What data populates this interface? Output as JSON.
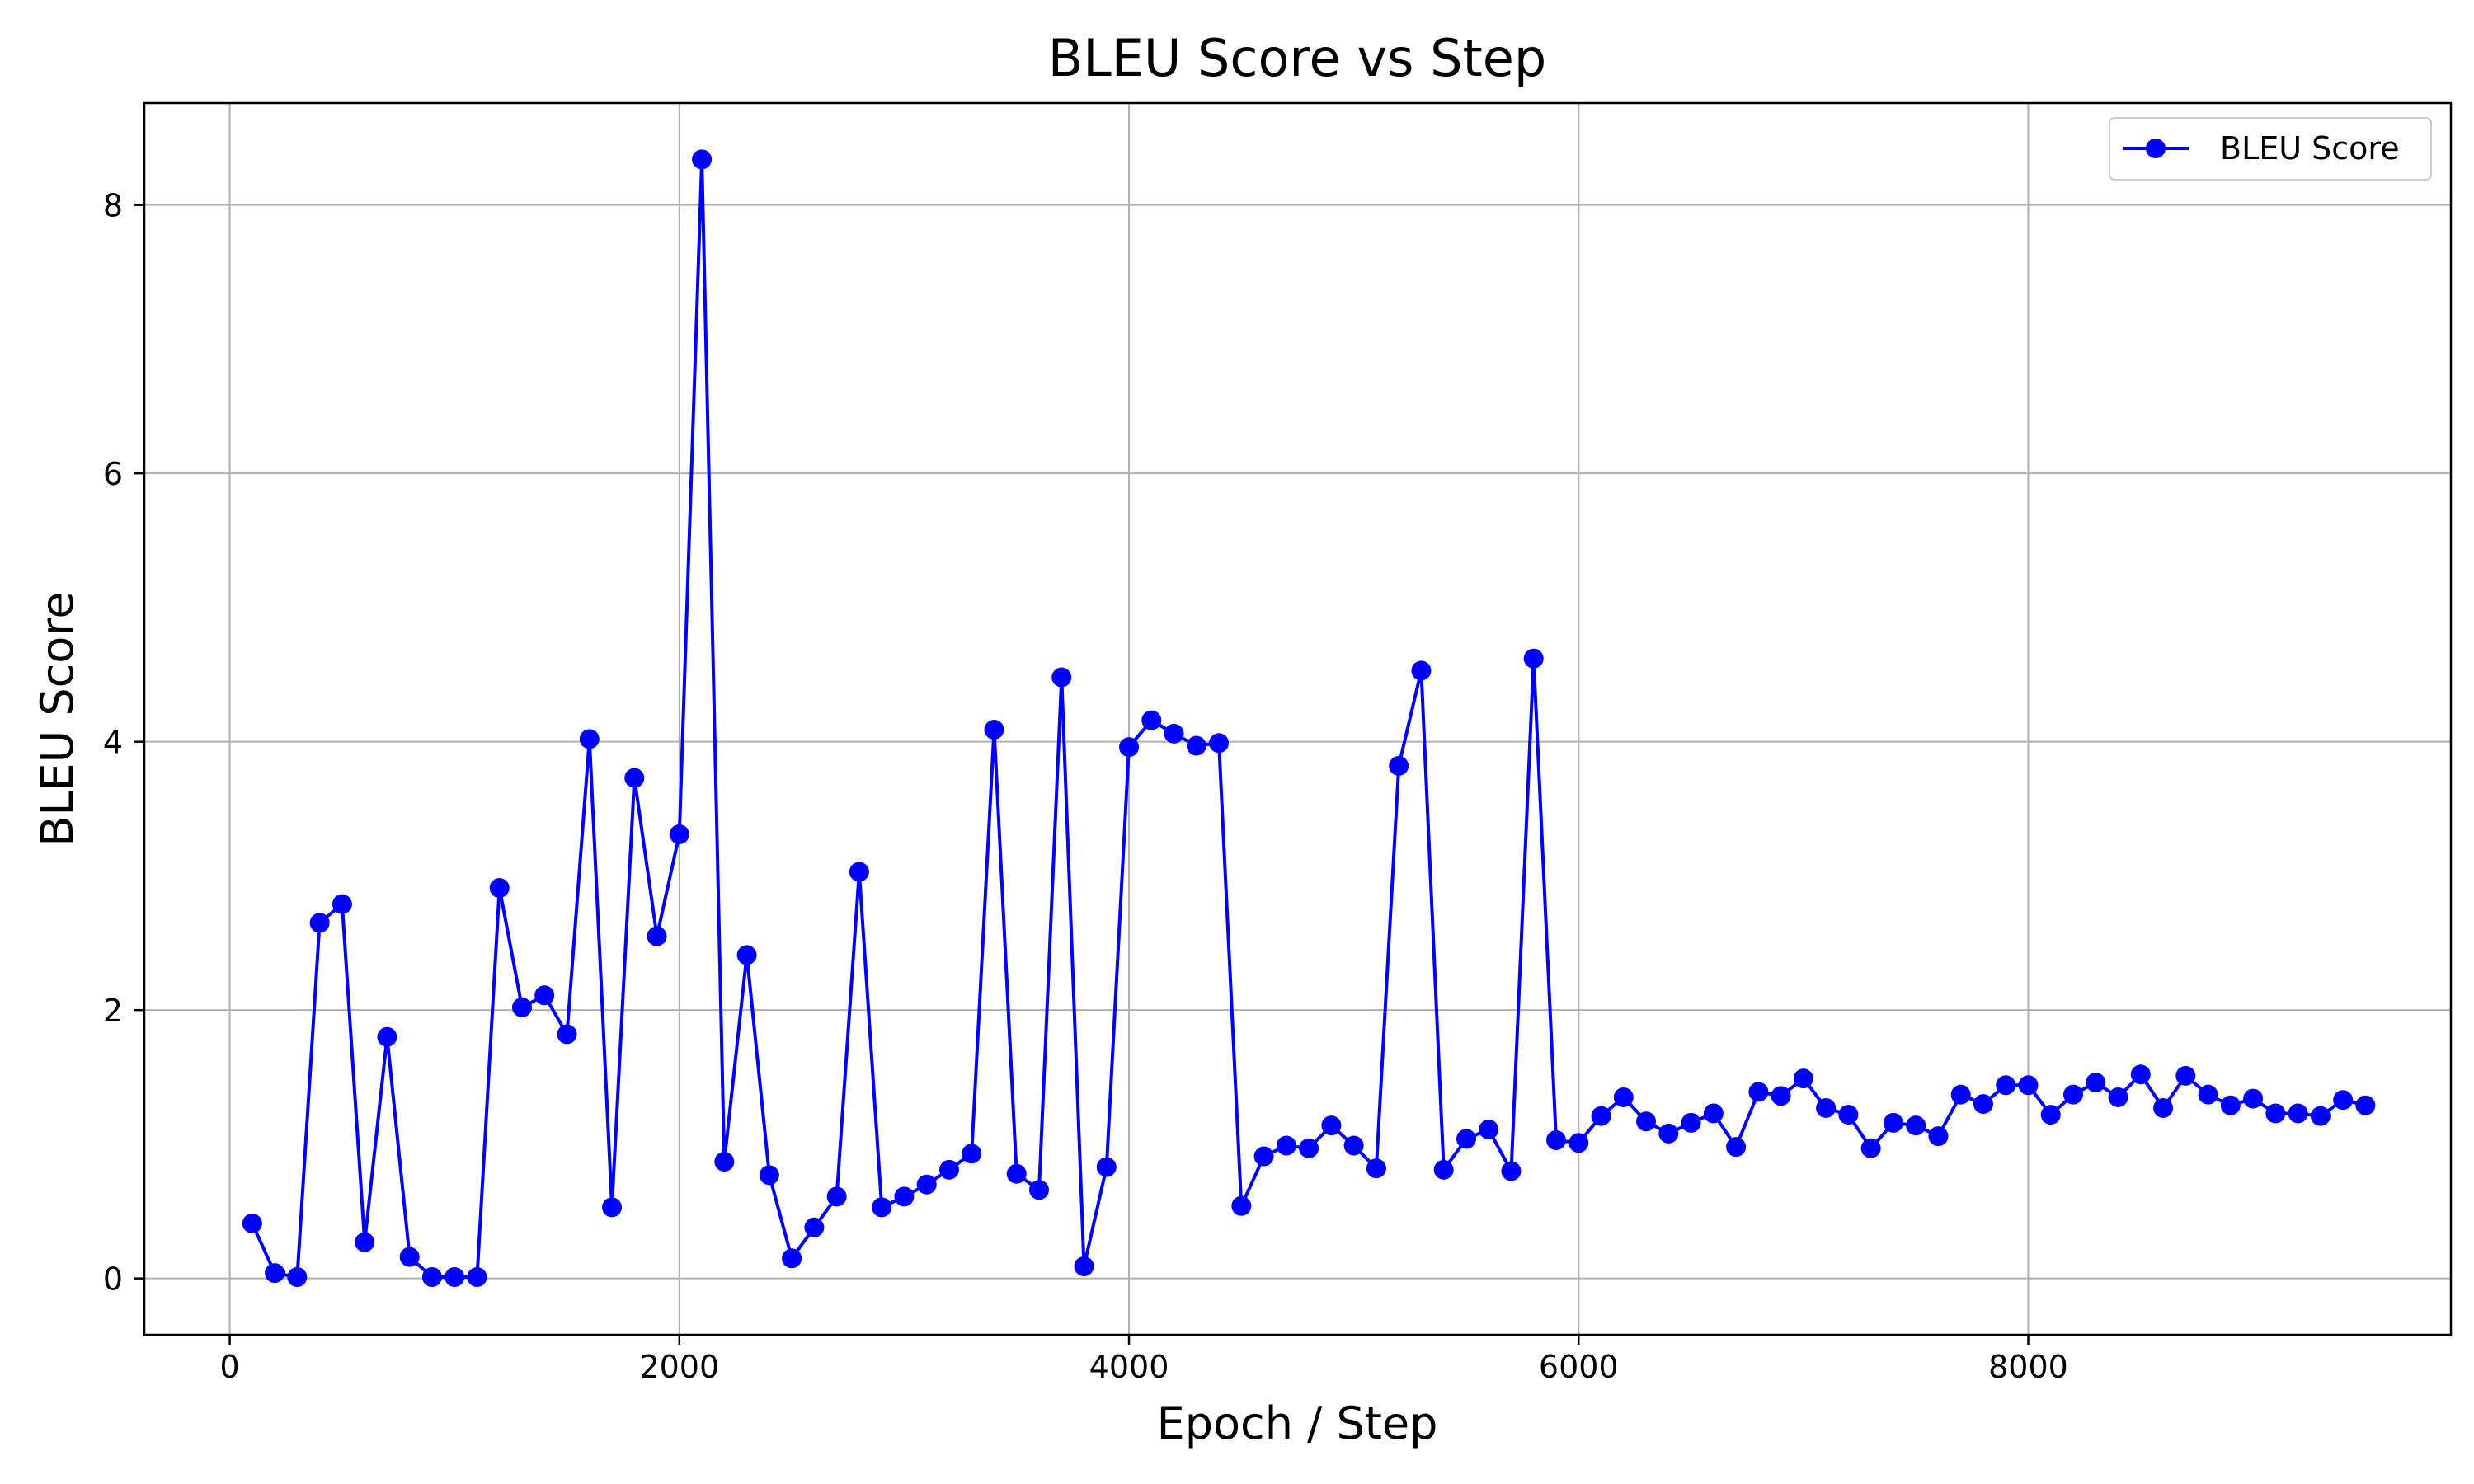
{
  "chart_data": {
    "type": "line",
    "title": "BLEU Score vs Step",
    "xlabel": "Epoch / Step",
    "ylabel": "BLEU Score",
    "xlim": [
      -380,
      9880
    ],
    "ylim": [
      -0.42,
      8.76
    ],
    "xticks": [
      0,
      2000,
      4000,
      6000,
      8000
    ],
    "yticks": [
      0,
      2,
      4,
      6,
      8
    ],
    "grid": true,
    "legend_position": "top-right",
    "series": [
      {
        "name": "BLEU Score",
        "color": "#0000ff",
        "marker": "circle",
        "x": [
          100,
          200,
          300,
          400,
          500,
          600,
          700,
          800,
          900,
          1000,
          1100,
          1200,
          1300,
          1400,
          1500,
          1600,
          1700,
          1800,
          1900,
          2000,
          2100,
          2200,
          2300,
          2400,
          2500,
          2600,
          2700,
          2800,
          2900,
          3000,
          3100,
          3200,
          3300,
          3400,
          3500,
          3600,
          3700,
          3800,
          3900,
          4000,
          4100,
          4200,
          4300,
          4400,
          4500,
          4600,
          4700,
          4800,
          4900,
          5000,
          5100,
          5200,
          5300,
          5400,
          5500,
          5600,
          5700,
          5800,
          5900,
          6000,
          6100,
          6200,
          6300,
          6400,
          6500,
          6600,
          6700,
          6800,
          6900,
          7000,
          7100,
          7200,
          7300,
          7400,
          7500,
          7600,
          7700,
          7800,
          7900,
          8000,
          8100,
          8200,
          8300,
          8400,
          8500,
          8600,
          8700,
          8800,
          8900,
          9000,
          9100,
          9200,
          9300,
          9400,
          9500
        ],
        "y": [
          0.41,
          0.04,
          0.01,
          2.65,
          2.79,
          0.27,
          1.8,
          0.16,
          0.01,
          0.01,
          0.01,
          2.91,
          2.02,
          2.11,
          1.82,
          4.02,
          0.53,
          3.73,
          2.55,
          3.31,
          8.34,
          0.87,
          2.41,
          0.77,
          0.15,
          0.38,
          0.61,
          3.03,
          0.53,
          0.61,
          0.7,
          0.81,
          0.93,
          4.09,
          0.78,
          0.66,
          4.48,
          0.09,
          0.83,
          3.96,
          4.16,
          4.06,
          3.97,
          3.99,
          0.54,
          0.91,
          0.99,
          0.97,
          1.14,
          0.99,
          0.82,
          3.82,
          4.53,
          0.81,
          1.04,
          1.11,
          0.8,
          4.62,
          1.03,
          1.01,
          1.21,
          1.35,
          1.17,
          1.08,
          1.16,
          1.23,
          0.98,
          1.39,
          1.36,
          1.49,
          1.27,
          1.22,
          0.97,
          1.16,
          1.14,
          1.06,
          1.37,
          1.3,
          1.44,
          1.44,
          1.22,
          1.37,
          1.46,
          1.35,
          1.52,
          1.27,
          1.51,
          1.37,
          1.29,
          1.34,
          1.23,
          1.23,
          1.21,
          1.33,
          1.29
        ]
      }
    ]
  }
}
